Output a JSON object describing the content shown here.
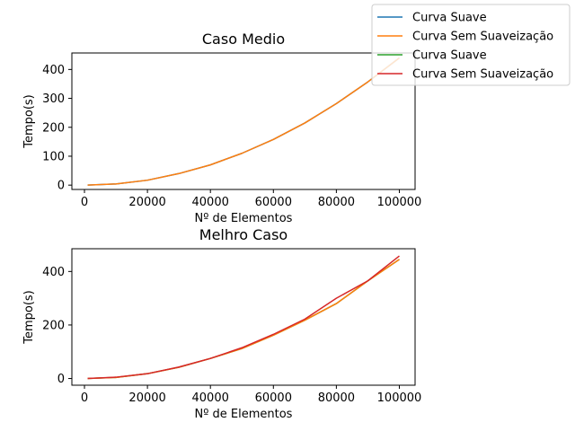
{
  "legend": {
    "entries": [
      {
        "label": "Curva Suave",
        "color": "#1f77b4"
      },
      {
        "label": "Curva Sem Suaveização",
        "color": "#ff7f0e"
      },
      {
        "label": "Curva Suave",
        "color": "#2ca02c"
      },
      {
        "label": "Curva Sem Suaveização",
        "color": "#d62728"
      }
    ]
  },
  "chart_data": [
    {
      "type": "line",
      "title": "Caso Medio",
      "xlabel": "Nº de Elementos",
      "ylabel": "Tempo(s)",
      "xlim": [
        -4000,
        105000
      ],
      "ylim": [
        -15,
        457
      ],
      "xticks": [
        0,
        20000,
        40000,
        60000,
        80000,
        100000
      ],
      "yticks": [
        0,
        100,
        200,
        300,
        400
      ],
      "series": [
        {
          "name": "Curva Suave",
          "color": "#1f77b4",
          "x": [
            1000,
            10000,
            20000,
            30000,
            40000,
            50000,
            60000,
            70000,
            80000,
            90000,
            100000
          ],
          "y": [
            0,
            4,
            17,
            40,
            70,
            110,
            158,
            215,
            282,
            357,
            440
          ]
        },
        {
          "name": "Curva Sem Suaveização",
          "color": "#ff7f0e",
          "x": [
            1000,
            10000,
            20000,
            30000,
            40000,
            50000,
            60000,
            70000,
            80000,
            90000,
            100000
          ],
          "y": [
            0,
            4,
            17,
            40,
            70,
            110,
            158,
            215,
            282,
            357,
            440
          ]
        }
      ]
    },
    {
      "type": "line",
      "title": "Melhro Caso",
      "xlabel": "Nº de Elementos",
      "ylabel": "Tempo(s)",
      "xlim": [
        -4000,
        105000
      ],
      "ylim": [
        -25,
        485
      ],
      "xticks": [
        0,
        20000,
        40000,
        60000,
        80000,
        100000
      ],
      "yticks": [
        0,
        200,
        400
      ],
      "series": [
        {
          "name": "Curva Suave",
          "color": "#2ca02c",
          "x": [
            1000,
            10000,
            20000,
            30000,
            40000,
            50000,
            60000,
            70000,
            80000,
            90000,
            100000
          ],
          "y": [
            0,
            4,
            18,
            42,
            75,
            112,
            162,
            218,
            280,
            365,
            445
          ]
        },
        {
          "name": "Curva Sem Suaveização",
          "color": "#ff7f0e",
          "x": [
            1000,
            10000,
            20000,
            30000,
            40000,
            50000,
            60000,
            70000,
            80000,
            90000,
            100000
          ],
          "y": [
            0,
            4,
            18,
            42,
            75,
            112,
            162,
            218,
            280,
            365,
            445
          ]
        },
        {
          "name": "Curva Sem Suaveização",
          "color": "#d62728",
          "x": [
            1000,
            10000,
            20000,
            30000,
            40000,
            50000,
            60000,
            70000,
            80000,
            90000,
            100000
          ],
          "y": [
            0,
            5,
            18,
            43,
            75,
            115,
            165,
            222,
            300,
            365,
            458
          ]
        }
      ]
    }
  ]
}
